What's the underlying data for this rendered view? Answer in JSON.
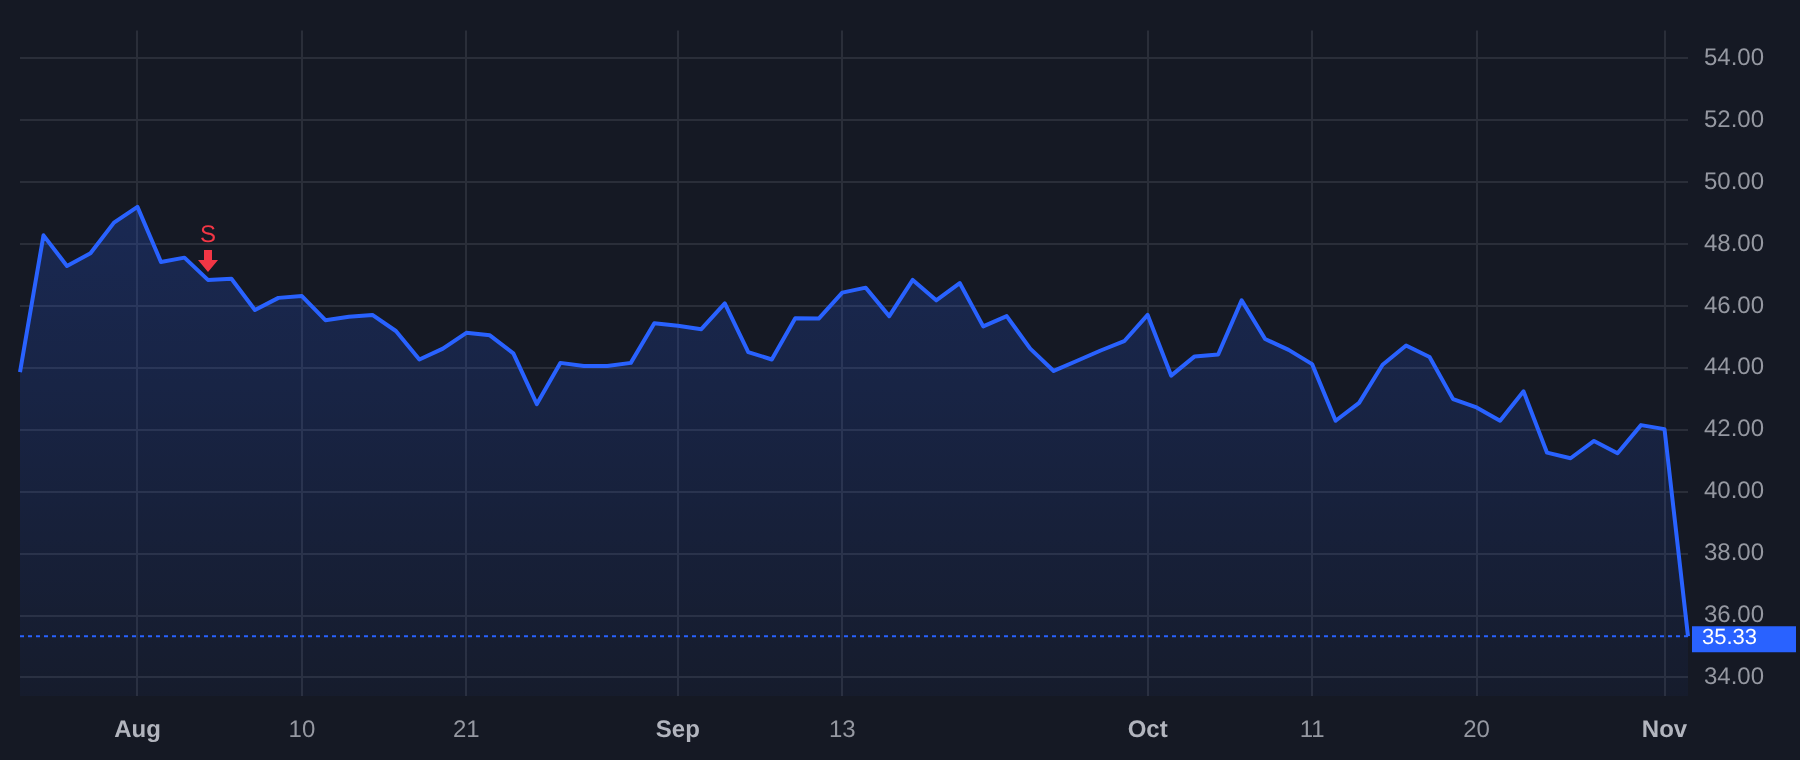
{
  "chart_data": {
    "type": "area",
    "categories": [
      null,
      null,
      null,
      null,
      null,
      "Aug",
      null,
      null,
      null,
      null,
      null,
      null,
      "10",
      null,
      null,
      null,
      null,
      null,
      null,
      "21",
      null,
      null,
      null,
      null,
      null,
      null,
      null,
      null,
      "Sep",
      null,
      null,
      null,
      null,
      null,
      null,
      "13",
      null,
      null,
      null,
      null,
      null,
      null,
      null,
      null,
      null,
      null,
      null,
      null,
      "Oct",
      null,
      null,
      null,
      null,
      null,
      null,
      "11",
      null,
      null,
      null,
      null,
      null,
      null,
      "20",
      null,
      null,
      null,
      null,
      null,
      null,
      null,
      "Nov",
      null
    ],
    "series": [
      {
        "color": "#2962ff",
        "values": [
          43.86,
          48.28,
          47.29,
          47.7,
          48.69,
          49.2,
          47.42,
          47.56,
          46.84,
          46.88,
          45.87,
          46.26,
          46.32,
          45.54,
          45.65,
          45.71,
          45.19,
          44.27,
          44.62,
          45.13,
          45.05,
          44.47,
          42.83,
          44.16,
          44.06,
          44.06,
          44.16,
          45.44,
          45.36,
          45.25,
          46.08,
          44.51,
          44.27,
          45.6,
          45.59,
          46.43,
          46.59,
          45.67,
          46.84,
          46.18,
          46.74,
          45.34,
          45.67,
          44.62,
          43.9,
          44.23,
          44.56,
          44.86,
          45.71,
          43.75,
          44.37,
          44.43,
          46.18,
          44.93,
          44.58,
          44.12,
          42.29,
          42.87,
          44.1,
          44.72,
          44.35,
          42.99,
          42.72,
          42.29,
          43.24,
          41.26,
          41.08,
          41.64,
          41.24,
          42.15,
          42.02,
          35.33
        ]
      }
    ],
    "ylim": [
      33.4,
      54.9
    ],
    "yticks": [
      {
        "value": 34,
        "label": "34.00"
      },
      {
        "value": 36,
        "label": "36.00"
      },
      {
        "value": 38,
        "label": "38.00"
      },
      {
        "value": 40,
        "label": "40.00"
      },
      {
        "value": 42,
        "label": "42.00"
      },
      {
        "value": 44,
        "label": "44.00"
      },
      {
        "value": 46,
        "label": "46.00"
      },
      {
        "value": 48,
        "label": "48.00"
      },
      {
        "value": 50,
        "label": "50.00"
      },
      {
        "value": 52,
        "label": "52.00"
      },
      {
        "value": 54,
        "label": "54.00"
      }
    ],
    "grid": true,
    "ref_lines": [
      {
        "axis": "y",
        "value": 35.33,
        "label": "35.33",
        "color": "#2962ff",
        "line_style": "dotted"
      }
    ],
    "annotations": [
      "S"
    ]
  }
}
